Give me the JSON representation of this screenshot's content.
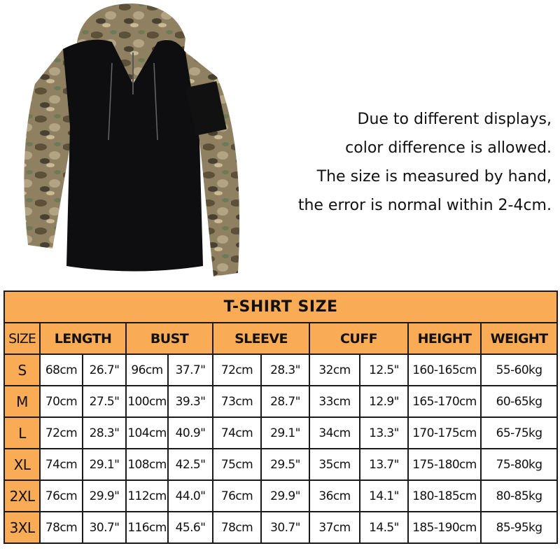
{
  "product_image": {
    "alt": "camouflage tactical shirt with hood",
    "colors": {
      "body": "#0e0e10",
      "camo_base": "#8a7a5a"
    }
  },
  "notes": [
    "Due to different displays,",
    "color difference is allowed.",
    "The size is measured by hand,",
    "the error is normal within 2-4cm."
  ],
  "table": {
    "title": "T-SHIRT SIZE",
    "header_color": "#f9ab56",
    "headers": [
      "SIZE",
      "LENGTH",
      "BUST",
      "SLEEVE",
      "CUFF",
      "HEIGHT",
      "WEIGHT"
    ],
    "rows": [
      [
        "S",
        "68cm",
        "26.7\"",
        "96cm",
        "37.7\"",
        "72cm",
        "28.3\"",
        "32cm",
        "12.5\"",
        "160-165cm",
        "55-60kg"
      ],
      [
        "M",
        "70cm",
        "27.5\"",
        "100cm",
        "39.3\"",
        "73cm",
        "28.7\"",
        "33cm",
        "12.9\"",
        "165-170cm",
        "60-65kg"
      ],
      [
        "L",
        "72cm",
        "28.3\"",
        "104cm",
        "40.9\"",
        "74cm",
        "29.1\"",
        "34cm",
        "13.3\"",
        "170-175cm",
        "65-75kg"
      ],
      [
        "XL",
        "74cm",
        "29.1\"",
        "108cm",
        "42.5\"",
        "75cm",
        "29.5\"",
        "35cm",
        "13.7\"",
        "175-180cm",
        "75-80kg"
      ],
      [
        "2XL",
        "76cm",
        "29.9\"",
        "112cm",
        "44.0\"",
        "76cm",
        "29.9\"",
        "36cm",
        "14.1\"",
        "180-185cm",
        "80-85kg"
      ],
      [
        "3XL",
        "78cm",
        "30.7\"",
        "116cm",
        "45.6\"",
        "78cm",
        "30.7\"",
        "37cm",
        "14.5\"",
        "185-190cm",
        "85-95kg"
      ]
    ]
  }
}
